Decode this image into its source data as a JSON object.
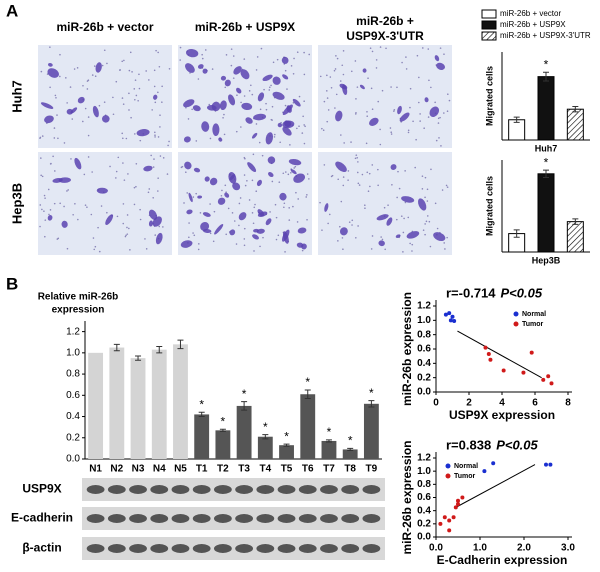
{
  "panel_labels": [
    "A",
    "B"
  ],
  "image_columns": [
    [
      "miR-26b + vector"
    ],
    [
      "miR-26b + USP9X"
    ],
    [
      "miR-26b +",
      "USP9X-3'UTR"
    ]
  ],
  "image_rows": [
    "Huh7",
    "Hep3B"
  ],
  "blot_labels": [
    "USP9X",
    "E-cadherin",
    "β-actin"
  ],
  "chart_data": [
    {
      "type": "bar",
      "ylabel": "Migrated cells",
      "xlabel": "Huh7",
      "ylim": [
        0,
        100
      ],
      "legend": "top",
      "series": [
        {
          "name": "miR-26b + vector",
          "color": "#ffffff",
          "values": [
            23
          ],
          "errors": [
            3
          ],
          "significance": [
            null
          ]
        },
        {
          "name": "miR-26b + USP9X",
          "color": "#111111",
          "values": [
            72
          ],
          "errors": [
            5
          ],
          "significance": [
            "*"
          ]
        },
        {
          "name": "miR-26b + USP9X-3'UTR",
          "color": "#ffffff",
          "hatch": true,
          "values": [
            35
          ],
          "errors": [
            3
          ],
          "significance": [
            null
          ]
        }
      ]
    },
    {
      "type": "bar",
      "ylabel": "Migrated cells",
      "xlabel": "Hep3B",
      "ylim": [
        0,
        100
      ],
      "series": [
        {
          "color": "#ffffff",
          "values": [
            20
          ],
          "errors": [
            4
          ],
          "significance": [
            null
          ]
        },
        {
          "color": "#111111",
          "values": [
            85
          ],
          "errors": [
            4
          ],
          "significance": [
            "*"
          ]
        },
        {
          "color": "#ffffff",
          "hatch": true,
          "values": [
            33
          ],
          "errors": [
            3
          ],
          "significance": [
            null
          ]
        }
      ]
    },
    {
      "type": "bar",
      "ylabel": [
        "Relative miR-26b",
        "expression"
      ],
      "categories": [
        "N1",
        "N2",
        "N3",
        "N4",
        "N5",
        "T1",
        "T2",
        "T3",
        "T4",
        "T5",
        "T6",
        "T7",
        "T8",
        "T9"
      ],
      "values": [
        1.0,
        1.05,
        0.95,
        1.03,
        1.08,
        0.42,
        0.27,
        0.5,
        0.21,
        0.13,
        0.61,
        0.17,
        0.09,
        0.52
      ],
      "errors": [
        0,
        0.03,
        0.02,
        0.03,
        0.04,
        0.02,
        0.01,
        0.04,
        0.02,
        0.01,
        0.04,
        0.01,
        0.01,
        0.03
      ],
      "significance": [
        null,
        null,
        null,
        null,
        null,
        "*",
        "*",
        "*",
        "*",
        "*",
        "*",
        "*",
        "*",
        "*"
      ],
      "colors": [
        "#d4d4d4",
        "#d4d4d4",
        "#d4d4d4",
        "#d4d4d4",
        "#d4d4d4",
        "#555555",
        "#555555",
        "#555555",
        "#555555",
        "#555555",
        "#555555",
        "#555555",
        "#555555",
        "#555555"
      ],
      "ylim": [
        0,
        1.3
      ],
      "yticks": [
        {
          "value": 0,
          "label": "0.0"
        },
        {
          "value": 0.2,
          "label": "0.2"
        },
        {
          "value": 0.4,
          "label": "0.4"
        },
        {
          "value": 0.6,
          "label": "0.6"
        },
        {
          "value": 0.8,
          "label": "0.8"
        },
        {
          "value": 1,
          "label": "1.0"
        },
        {
          "value": 1.2,
          "label": "1.2"
        }
      ]
    },
    {
      "type": "scatter",
      "title": "r=-0.714",
      "p_value": "P<0.05",
      "xlabel": "USP9X expression",
      "ylabel": "miR-26b expression",
      "xlim": [
        0,
        8
      ],
      "xticks": [
        0,
        2,
        4,
        6,
        8
      ],
      "ylim": [
        0,
        1.2
      ],
      "yticks": [
        {
          "value": 0,
          "label": "0.0"
        },
        {
          "value": 0.2,
          "label": "0.2"
        },
        {
          "value": 0.4,
          "label": "0.4"
        },
        {
          "value": 0.6,
          "label": "0.6"
        },
        {
          "value": 0.8,
          "label": "0.8"
        },
        {
          "value": 1,
          "label": "1.0"
        },
        {
          "value": 1.2,
          "label": "1.2"
        }
      ],
      "legend": "upper right",
      "series": [
        {
          "name": "Normal",
          "color": "#1a2fd0",
          "x": [
            0.6,
            0.8,
            1.0,
            0.9,
            1.1
          ],
          "y": [
            1.08,
            1.1,
            1.05,
            1.0,
            0.99
          ]
        },
        {
          "name": "Tumor",
          "color": "#d01a1a",
          "x": [
            3.0,
            3.2,
            3.3,
            4.1,
            5.3,
            5.8,
            6.5,
            6.8,
            7.0
          ],
          "y": [
            0.62,
            0.53,
            0.45,
            0.3,
            0.27,
            0.55,
            0.17,
            0.22,
            0.12
          ]
        }
      ],
      "trendline": {
        "x": [
          1.3,
          6.4
        ],
        "y": [
          0.85,
          0.2
        ]
      }
    },
    {
      "type": "scatter",
      "title": "r=0.838",
      "p_value": "P<0.05",
      "xlabel": "E-Cadherin expression",
      "ylabel": "miR-26b expression",
      "xlim": [
        0,
        3
      ],
      "xticks": [
        {
          "value": 0,
          "label": "0.0"
        },
        {
          "value": 1,
          "label": "1.0"
        },
        {
          "value": 2,
          "label": "2.0"
        },
        {
          "value": 3,
          "label": "3.0"
        }
      ],
      "ylim": [
        0,
        1.2
      ],
      "yticks": [
        {
          "value": 0,
          "label": "0.0"
        },
        {
          "value": 0.2,
          "label": "0.2"
        },
        {
          "value": 0.4,
          "label": "0.4"
        },
        {
          "value": 0.6,
          "label": "0.6"
        },
        {
          "value": 0.8,
          "label": "0.8"
        },
        {
          "value": 1,
          "label": "1.0"
        },
        {
          "value": 1.2,
          "label": "1.2"
        }
      ],
      "legend": "upper left",
      "series": [
        {
          "name": "Normal",
          "color": "#1a2fd0",
          "x": [
            1.1,
            1.3,
            2.5,
            2.6
          ],
          "y": [
            1.0,
            1.12,
            1.1,
            1.1
          ]
        },
        {
          "name": "Tumor",
          "color": "#d01a1a",
          "x": [
            0.1,
            0.2,
            0.3,
            0.3,
            0.4,
            0.45,
            0.5,
            0.5,
            0.6
          ],
          "y": [
            0.2,
            0.3,
            0.25,
            0.1,
            0.3,
            0.45,
            0.5,
            0.55,
            0.6
          ]
        }
      ],
      "trendline": {
        "x": [
          0.45,
          2.25
        ],
        "y": [
          0.45,
          1.1
        ]
      }
    }
  ]
}
